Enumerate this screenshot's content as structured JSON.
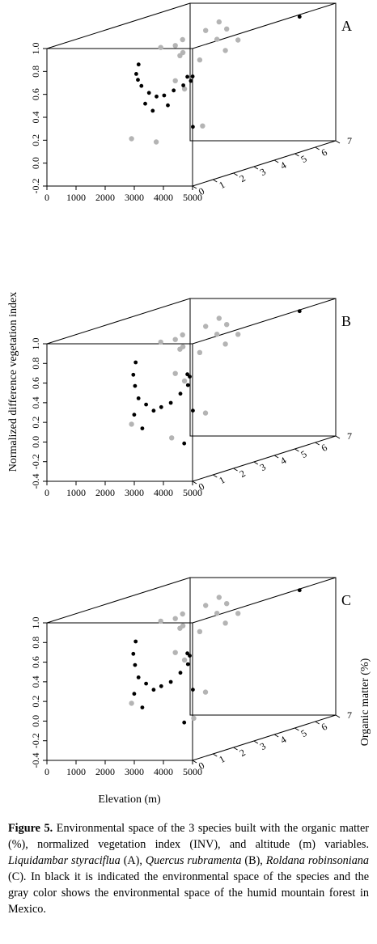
{
  "figure": {
    "y_axis_label": "Normalized difference vegetation index",
    "x_axis_label": "Elevation (m)",
    "z_axis_label": "Organic matter (%)"
  },
  "chart_data": [
    {
      "type": "scatter",
      "panel_label": "A",
      "x_ticks": [
        "0",
        "1000",
        "2000",
        "3000",
        "4000",
        "5000"
      ],
      "y_ticks": [
        "-0.2",
        "0.0",
        "0.2",
        "0.4",
        "0.6",
        "0.8",
        "1.0"
      ],
      "z_ticks": [
        "0",
        "1",
        "2",
        "3",
        "4",
        "5",
        "6",
        "7"
      ],
      "xlim": [
        0,
        5000
      ],
      "ylim": [
        -0.2,
        1.0
      ],
      "zlim": [
        0,
        7
      ],
      "series": [
        {
          "color": "#b4b4b4",
          "points": [
            [
              2500,
              0.92,
              4.2
            ],
            [
              2200,
              0.88,
              3.5
            ],
            [
              2800,
              0.9,
              4.8
            ],
            [
              3100,
              0.86,
              3.9
            ],
            [
              1800,
              0.84,
              3.0
            ],
            [
              3400,
              0.82,
              4.5
            ],
            [
              2600,
              0.78,
              2.8
            ],
            [
              2000,
              0.75,
              3.8
            ],
            [
              3000,
              0.72,
              3.2
            ],
            [
              2400,
              0.95,
              5.0
            ],
            [
              1600,
              0.8,
              4.0
            ],
            [
              3600,
              0.78,
              3.6
            ],
            [
              2300,
              0.55,
              3.0
            ],
            [
              2900,
              0.5,
              2.6
            ],
            [
              3800,
              0.2,
              2.2
            ],
            [
              1500,
              0.1,
              2.0
            ],
            [
              2700,
              0.1,
              1.5
            ]
          ]
        },
        {
          "color": "#000000",
          "points": [
            [
              900,
              0.68,
              3.2
            ],
            [
              1100,
              0.62,
              2.8
            ],
            [
              1300,
              0.58,
              2.6
            ],
            [
              1700,
              0.55,
              2.2
            ],
            [
              2100,
              0.5,
              2.0
            ],
            [
              2500,
              0.48,
              1.8
            ],
            [
              2900,
              0.5,
              1.6
            ],
            [
              3300,
              0.55,
              1.5
            ],
            [
              3700,
              0.6,
              1.4
            ],
            [
              4100,
              0.65,
              1.2
            ],
            [
              4300,
              0.7,
              1.0
            ],
            [
              4400,
              0.72,
              0.6
            ],
            [
              1900,
              0.4,
              2.1
            ],
            [
              2300,
              0.35,
              1.9
            ],
            [
              3100,
              0.42,
              1.5
            ],
            [
              4800,
              0.3,
              0.3
            ],
            [
              4600,
              0.95,
              5.8
            ]
          ]
        }
      ]
    },
    {
      "type": "scatter",
      "panel_label": "B",
      "x_ticks": [
        "0",
        "1000",
        "2000",
        "3000",
        "4000",
        "5000"
      ],
      "y_ticks": [
        "-0.4",
        "-0.2",
        "0.0",
        "0.2",
        "0.4",
        "0.6",
        "0.8",
        "1.0"
      ],
      "z_ticks": [
        "0",
        "1",
        "2",
        "3",
        "4",
        "5",
        "6",
        "7"
      ],
      "xlim": [
        0,
        5000
      ],
      "ylim": [
        -0.4,
        1.0
      ],
      "zlim": [
        0,
        7
      ],
      "series": [
        {
          "color": "#b4b4b4",
          "points": [
            [
              2500,
              0.9,
              4.2
            ],
            [
              2200,
              0.86,
              3.5
            ],
            [
              2800,
              0.88,
              4.8
            ],
            [
              3100,
              0.84,
              3.9
            ],
            [
              1800,
              0.82,
              3.0
            ],
            [
              3400,
              0.8,
              4.5
            ],
            [
              2600,
              0.76,
              2.8
            ],
            [
              2000,
              0.72,
              3.8
            ],
            [
              3000,
              0.7,
              3.2
            ],
            [
              2400,
              0.93,
              5.0
            ],
            [
              1600,
              0.78,
              4.0
            ],
            [
              3600,
              0.76,
              3.6
            ],
            [
              2300,
              0.5,
              3.0
            ],
            [
              2900,
              0.45,
              2.6
            ],
            [
              3900,
              0.15,
              2.2
            ],
            [
              1500,
              0.05,
              2.0
            ],
            [
              3300,
              -0.05,
              1.4
            ]
          ]
        },
        {
          "color": "#000000",
          "points": [
            [
              800,
              0.6,
              3.2
            ],
            [
              1000,
              0.5,
              2.8
            ],
            [
              1200,
              0.4,
              2.6
            ],
            [
              1600,
              0.3,
              2.2
            ],
            [
              2000,
              0.25,
              2.0
            ],
            [
              2400,
              0.2,
              1.8
            ],
            [
              2800,
              0.25,
              1.6
            ],
            [
              3200,
              0.3,
              1.5
            ],
            [
              3600,
              0.4,
              1.4
            ],
            [
              4000,
              0.5,
              1.2
            ],
            [
              4200,
              0.6,
              1.0
            ],
            [
              4400,
              0.65,
              0.6
            ],
            [
              1100,
              0.1,
              2.7
            ],
            [
              1800,
              0.0,
              2.1
            ],
            [
              3800,
              -0.1,
              1.3
            ],
            [
              4800,
              0.3,
              0.3
            ],
            [
              4600,
              0.95,
              5.8
            ]
          ]
        }
      ]
    },
    {
      "type": "scatter",
      "panel_label": "C",
      "x_ticks": [
        "0",
        "1000",
        "2000",
        "3000",
        "4000",
        "5000"
      ],
      "y_ticks": [
        "-0.4",
        "-0.2",
        "0.0",
        "0.2",
        "0.4",
        "0.6",
        "0.8",
        "1.0"
      ],
      "z_ticks": [
        "0",
        "1",
        "2",
        "3",
        "4",
        "5",
        "6",
        "7"
      ],
      "xlim": [
        0,
        5000
      ],
      "ylim": [
        -0.4,
        1.0
      ],
      "zlim": [
        0,
        7
      ],
      "series": [
        {
          "color": "#b4b4b4",
          "points": [
            [
              2500,
              0.9,
              4.2
            ],
            [
              2200,
              0.86,
              3.5
            ],
            [
              2800,
              0.88,
              4.8
            ],
            [
              3100,
              0.84,
              3.9
            ],
            [
              1800,
              0.82,
              3.0
            ],
            [
              3400,
              0.8,
              4.5
            ],
            [
              2600,
              0.76,
              2.8
            ],
            [
              2000,
              0.72,
              3.8
            ],
            [
              3000,
              0.7,
              3.2
            ],
            [
              2400,
              0.93,
              5.0
            ],
            [
              1600,
              0.78,
              4.0
            ],
            [
              3600,
              0.76,
              3.6
            ],
            [
              2300,
              0.5,
              3.0
            ],
            [
              2900,
              0.45,
              2.6
            ],
            [
              3900,
              0.15,
              2.2
            ],
            [
              1500,
              0.05,
              2.0
            ],
            [
              4200,
              -0.05,
              1.2
            ]
          ]
        },
        {
          "color": "#000000",
          "points": [
            [
              800,
              0.6,
              3.2
            ],
            [
              1000,
              0.5,
              2.8
            ],
            [
              1200,
              0.4,
              2.6
            ],
            [
              1600,
              0.3,
              2.2
            ],
            [
              2000,
              0.25,
              2.0
            ],
            [
              2400,
              0.2,
              1.8
            ],
            [
              2800,
              0.25,
              1.6
            ],
            [
              3200,
              0.3,
              1.5
            ],
            [
              3600,
              0.4,
              1.4
            ],
            [
              4000,
              0.5,
              1.2
            ],
            [
              4200,
              0.6,
              1.0
            ],
            [
              4400,
              0.65,
              0.6
            ],
            [
              1100,
              0.1,
              2.7
            ],
            [
              1800,
              0.0,
              2.1
            ],
            [
              3800,
              -0.1,
              1.3
            ],
            [
              4800,
              0.3,
              0.3
            ],
            [
              4600,
              0.95,
              5.8
            ]
          ]
        }
      ]
    }
  ],
  "caption": {
    "label": "Figure 5.",
    "text_1": " Environmental space of the 3 species built with the organic matter (%), normalized vegetation index (INV), and altitude (m) variables. ",
    "species_a": "Liquidambar styraciflua",
    "text_2": " (A), ",
    "species_b": "Quercus rubramenta",
    "text_3": " (B), ",
    "species_c": "Roldana robinsoniana",
    "text_4": " (C). In black it is indicated the environmental space of the species and the gray color shows the environmental space of the humid mountain forest in Mexico."
  }
}
